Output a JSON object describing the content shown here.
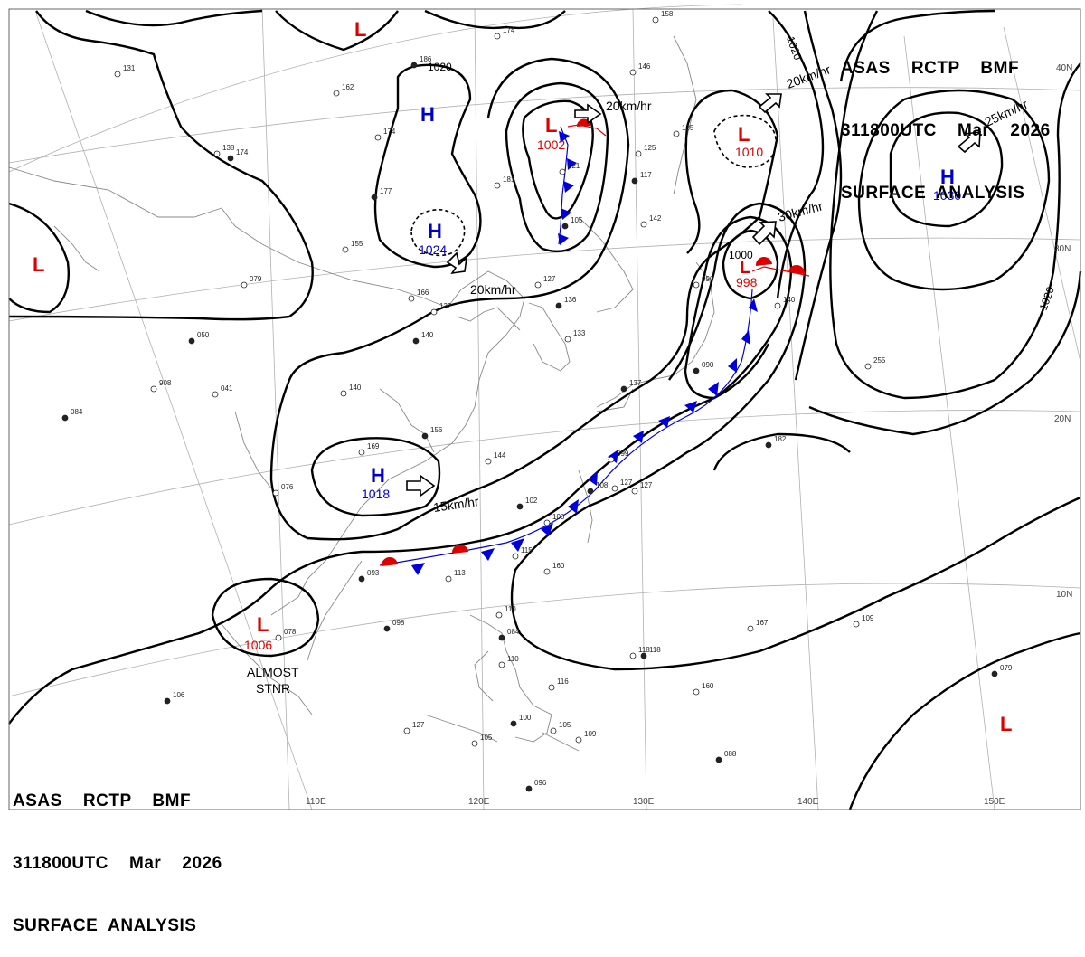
{
  "header_top": {
    "line1": "ASAS    RCTP    BMF",
    "line2": "311800UTC    Mar    2026",
    "line3": "SURFACE  ANALYSIS"
  },
  "header_bottom": {
    "line1": "ASAS    RCTP    BMF",
    "line2": "311800UTC    Mar    2026",
    "line3": "SURFACE  ANALYSIS"
  },
  "colors": {
    "high": "#0000cc",
    "low": "#dd0000",
    "cold_front": "#0000dd",
    "warm_front": "#dd0000",
    "isobar": "#000000"
  },
  "lon_labels": [
    "110E",
    "120E",
    "130E",
    "140E",
    "150E"
  ],
  "lat_labels": [
    "30N",
    "20N",
    "10N"
  ],
  "right_top_label": "40N",
  "pressure_centers": [
    {
      "type": "H",
      "value": ""
    },
    {
      "type": "H",
      "value": "1024"
    },
    {
      "type": "H",
      "value": "1018"
    },
    {
      "type": "H",
      "value": "1030"
    },
    {
      "type": "L",
      "value": "1002"
    },
    {
      "type": "L",
      "value": "1010"
    },
    {
      "type": "L",
      "value": "998"
    },
    {
      "type": "L",
      "value": "1006"
    },
    {
      "type": "L",
      "value": ""
    },
    {
      "type": "L",
      "value": ""
    },
    {
      "type": "L",
      "value": ""
    }
  ],
  "isobar_labels": [
    "1020",
    "1020",
    "1020",
    "1000"
  ],
  "motion_labels": [
    "20km/hr",
    "20km/hr",
    "20km/hr",
    "30km/hr",
    "25km/hr",
    "15km/hr"
  ],
  "annotations": {
    "almost_stnr_1": "ALMOST",
    "almost_stnr_2": "STNR"
  },
  "observations": [
    "174",
    "162",
    "174",
    "177",
    "155",
    "079",
    "050",
    "908",
    "041",
    "084",
    "166",
    "132",
    "140",
    "140",
    "169",
    "156",
    "144",
    "076",
    "093",
    "113",
    "115",
    "102",
    "100",
    "160",
    "098",
    "078",
    "110",
    "084",
    "110",
    "116",
    "106",
    "127",
    "105",
    "100",
    "105",
    "109",
    "096",
    "146",
    "125",
    "117",
    "142",
    "135",
    "118",
    "127",
    "099",
    "108",
    "127",
    "090",
    "090",
    "140",
    "255",
    "182",
    "167",
    "109",
    "079",
    "118",
    "160",
    "088",
    "131",
    "138",
    "137",
    "181",
    "127",
    "136",
    "133",
    "021",
    "105",
    "158",
    "174",
    "186"
  ]
}
